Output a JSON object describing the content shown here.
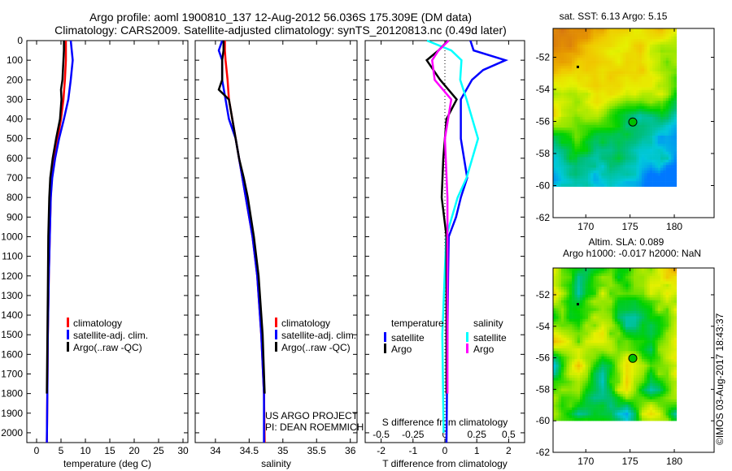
{
  "title_line1": "Argo profile: aoml 1900810_137 12-Aug-2012 56.036S 175.309E (DM data)",
  "title_line2": "Climatology: CARS2009. Satellite-adjusted climatology: synTS_20120813.nc (0.49d later)",
  "credit": "©IMOS 03-Aug-2017 18:43:37",
  "colors": {
    "climatology": "#ff0000",
    "satellite": "#0000ff",
    "argo": "#000000",
    "s_satellite": "#00ffff",
    "s_argo": "#ff00ff"
  },
  "chart_data": [
    {
      "type": "line",
      "id": "temperature",
      "xlabel": "temperature (deg C)",
      "ylabel": "",
      "xlim": [
        -2,
        31
      ],
      "ylim": [
        2050,
        0
      ],
      "xticks": [
        "0",
        "5",
        "10",
        "15",
        "20",
        "25",
        "30"
      ],
      "xtick_values": [
        0,
        5,
        10,
        15,
        20,
        25,
        30
      ],
      "yticks": [
        "0",
        "100",
        "200",
        "300",
        "400",
        "500",
        "600",
        "700",
        "800",
        "900",
        "1000",
        "1100",
        "1200",
        "1300",
        "1400",
        "1500",
        "1600",
        "1700",
        "1800",
        "1900",
        "2000"
      ],
      "legend": [
        "climatology",
        "satellite-adj. clim.",
        "Argo(..raw -QC)"
      ],
      "series": [
        {
          "name": "climatology",
          "color": "#ff0000",
          "depth": [
            0,
            50,
            100,
            200,
            300,
            400,
            500,
            600,
            700,
            800,
            1000,
            1200,
            1500,
            1800,
            2050
          ],
          "values": [
            6,
            6,
            6,
            5.8,
            5.5,
            5,
            4.3,
            3.6,
            3.1,
            2.9,
            2.7,
            2.5,
            2.3,
            2.2,
            2.1
          ]
        },
        {
          "name": "satellite-adj. clim.",
          "color": "#0000ff",
          "depth": [
            0,
            50,
            100,
            200,
            300,
            400,
            500,
            600,
            700,
            800,
            1000,
            1200,
            1500,
            1800,
            2050
          ],
          "values": [
            7,
            7.2,
            7.4,
            7,
            6.5,
            5.6,
            4.6,
            3.8,
            3.2,
            2.9,
            2.7,
            2.5,
            2.3,
            2.2,
            2.1
          ]
        },
        {
          "name": "Argo(..raw -QC)",
          "color": "#000000",
          "depth": [
            0,
            50,
            100,
            200,
            250,
            300,
            400,
            500,
            600,
            700,
            800,
            1000,
            1300,
            1800
          ],
          "values": [
            5.6,
            5.6,
            5.5,
            5.3,
            5.0,
            5.1,
            4.8,
            4.0,
            3.3,
            2.8,
            2.6,
            2.4,
            2.3,
            2.1
          ]
        }
      ]
    },
    {
      "type": "line",
      "id": "salinity",
      "xlabel": "salinity",
      "xlim": [
        33.7,
        36.1
      ],
      "ylim": [
        2050,
        0
      ],
      "xticks": [
        "34",
        "34.5",
        "35",
        "35.5",
        "36"
      ],
      "xtick_values": [
        34,
        34.5,
        35,
        35.5,
        36
      ],
      "legend": [
        "climatology",
        "satellite-adj. clim.",
        "Argo(..raw -QC)"
      ],
      "annotation": [
        "US ARGO PROJECT",
        "PI: DEAN ROEMMICH"
      ],
      "series": [
        {
          "name": "climatology",
          "color": "#ff0000",
          "depth": [
            0,
            50,
            100,
            200,
            300,
            400,
            500,
            600,
            700,
            800,
            1000,
            1200,
            1500,
            1800,
            2050
          ],
          "values": [
            34.14,
            34.14,
            34.15,
            34.18,
            34.2,
            34.25,
            34.3,
            34.35,
            34.4,
            34.45,
            34.55,
            34.62,
            34.68,
            34.72,
            34.73
          ]
        },
        {
          "name": "satellite-adj. clim.",
          "color": "#0000ff",
          "depth": [
            0,
            50,
            100,
            200,
            300,
            400,
            500,
            600,
            700,
            800,
            1000,
            1200,
            1500,
            1800,
            2050
          ],
          "values": [
            34.1,
            34.05,
            34.1,
            34.1,
            34.15,
            34.2,
            34.3,
            34.35,
            34.4,
            34.45,
            34.55,
            34.62,
            34.68,
            34.72,
            34.72
          ]
        },
        {
          "name": "Argo(..raw -QC)",
          "color": "#000000",
          "depth": [
            0,
            50,
            100,
            200,
            250,
            300,
            400,
            500,
            600,
            700,
            800,
            1000,
            1200,
            1500,
            1800
          ],
          "values": [
            34.12,
            34.12,
            34.1,
            34.1,
            34.05,
            34.2,
            34.25,
            34.3,
            34.35,
            34.42,
            34.48,
            34.57,
            34.64,
            34.7,
            34.73
          ]
        }
      ]
    },
    {
      "type": "line",
      "id": "difference",
      "xlabel": "T difference from climatology",
      "x2label": "S difference from climatology",
      "xlim": [
        -2.5,
        2.5
      ],
      "ylim": [
        2050,
        0
      ],
      "xticks": [
        "-2",
        "-1",
        "0",
        "1",
        "2"
      ],
      "xtick_values": [
        -2,
        -1,
        0,
        1,
        2
      ],
      "x2ticks": [
        "-0.5",
        "-0.25",
        "0",
        "0.25",
        "0.5"
      ],
      "x2tick_values": [
        -0.5,
        -0.25,
        0,
        0.25,
        0.5
      ],
      "legend_titles": [
        "temperature",
        "salinity"
      ],
      "legend": [
        "satellite",
        "Argo",
        "satellite",
        "Argo"
      ],
      "series": [
        {
          "name": "T satellite",
          "color": "#0000ff",
          "scale": "T",
          "depth": [
            0,
            50,
            100,
            150,
            200,
            300,
            500,
            700,
            800,
            900,
            1000,
            1200,
            1500,
            2050
          ],
          "values": [
            0.8,
            0.9,
            1.9,
            1.2,
            0.85,
            0.5,
            0.5,
            0.7,
            0.5,
            0.35,
            0.12,
            0.1,
            0.08,
            0.05
          ]
        },
        {
          "name": "S satellite",
          "color": "#00ffff",
          "scale": "S",
          "depth": [
            0,
            50,
            100,
            200,
            300,
            500,
            700,
            800,
            1000,
            1500,
            2000
          ],
          "values": [
            -0.14,
            0.05,
            0.13,
            0.12,
            0.17,
            0.26,
            0.17,
            0.1,
            0.01,
            -0.02,
            -0.01
          ]
        },
        {
          "name": "T Argo",
          "color": "#000000",
          "scale": "T",
          "depth": [
            0,
            50,
            100,
            200,
            300,
            400,
            600,
            800,
            1000,
            1500,
            1800
          ],
          "values": [
            0.1,
            -0.2,
            -0.57,
            -0.15,
            0.37,
            0.05,
            -0.05,
            -0.1,
            0.05,
            0.05,
            0.05
          ]
        },
        {
          "name": "S Argo",
          "color": "#ff00ff",
          "scale": "S",
          "depth": [
            0,
            50,
            100,
            200,
            300,
            500,
            800,
            1500,
            1800
          ],
          "values": [
            0.03,
            -0.05,
            -0.1,
            -0.08,
            0.05,
            0.0,
            0.02,
            0.02,
            0.02
          ]
        }
      ]
    }
  ],
  "maps": [
    {
      "title": "sat. SST: 6.13 Argo: 5.15",
      "xticks": [
        "170",
        "175",
        "180"
      ],
      "yticks": [
        "-52",
        "-54",
        "-56",
        "-58",
        "-60",
        "-62"
      ],
      "kind": "sst"
    },
    {
      "title_line1": "Altim. SLA: 0.089",
      "title_line2": "Argo h1000: -0.017 h2000: NaN",
      "xticks": [
        "170",
        "175",
        "180"
      ],
      "yticks": [
        "-52",
        "-54",
        "-56",
        "-58",
        "-60",
        "-62"
      ],
      "kind": "sla"
    }
  ]
}
